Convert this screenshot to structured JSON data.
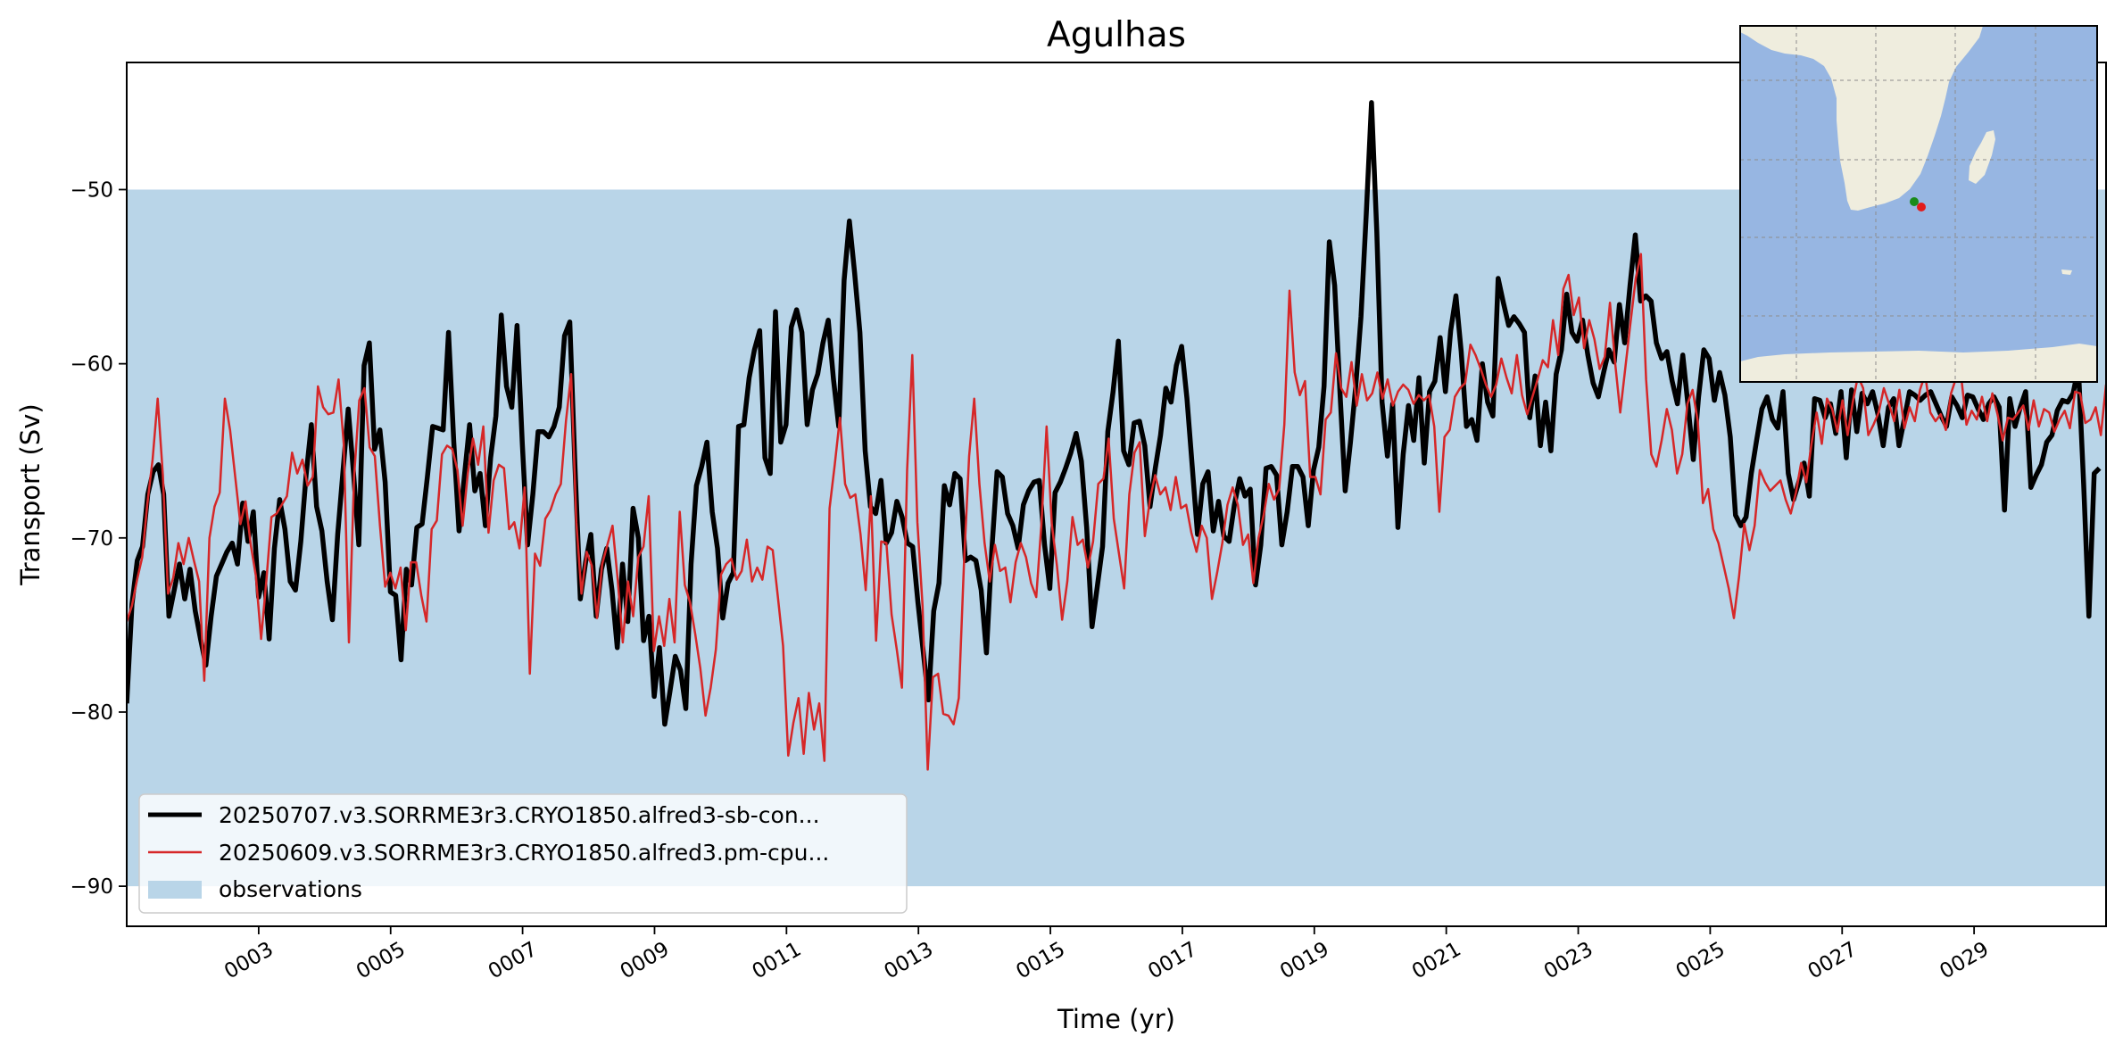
{
  "chart_data": {
    "type": "line",
    "title": "Agulhas",
    "xlabel": "Time (yr)",
    "ylabel": "Transport (Sv)",
    "xlim": [
      1.0,
      31.0
    ],
    "ylim": [
      -92.3,
      -42.7
    ],
    "x_ticks": [
      3,
      5,
      7,
      9,
      11,
      13,
      15,
      17,
      19,
      21,
      23,
      25,
      27,
      29
    ],
    "x_tick_labels": [
      "0003",
      "0005",
      "0007",
      "0009",
      "0011",
      "0013",
      "0015",
      "0017",
      "0019",
      "0021",
      "0023",
      "0025",
      "0027",
      "0029"
    ],
    "y_ticks": [
      -90,
      -80,
      -70,
      -60,
      -50
    ],
    "y_tick_labels": [
      "−90",
      "−80",
      "−70",
      "−60",
      "−50"
    ],
    "observations": {
      "name": "observations",
      "ymin": -90,
      "ymax": -50,
      "color": "#b9d5e8"
    },
    "legend_position": "lower-left",
    "inset_map": {
      "type": "map",
      "region": "Southern Africa",
      "land_color": "#efedde",
      "ocean_color": "#97b6e2",
      "markers": [
        {
          "color": "#1a8a1a",
          "lon": 20.0,
          "lat": -34.8
        },
        {
          "color": "#e21b1b",
          "lon": 20.5,
          "lat": -35.2
        }
      ]
    },
    "series": [
      {
        "name": "20250707.v3.SORRME3r3.CRYO1850.alfred3-sb-con...",
        "color": "#000000",
        "x_start": 1.0,
        "x_end": 30.9,
        "y": [
          -79.5,
          -73.8,
          -71.3,
          -70.5,
          -67.5,
          -66.2,
          -65.8,
          -67.5,
          -74.5,
          -73,
          -71.5,
          -73.5,
          -71.8,
          -74.2,
          -75.8,
          -77.3,
          -74.5,
          -72.2,
          -71.5,
          -70.8,
          -70.3,
          -71.5,
          -68,
          -70.2,
          -68.5,
          -73.4,
          -72,
          -75.8,
          -70.6,
          -67.8,
          -69.5,
          -72.5,
          -73,
          -70.2,
          -66.4,
          -63.5,
          -68.2,
          -69.6,
          -72.5,
          -74.7,
          -69.8,
          -66.2,
          -62.6,
          -66.3,
          -70.4,
          -60.1,
          -58.8,
          -64.9,
          -63.8,
          -66.8,
          -73.1,
          -73.3,
          -77,
          -71.8,
          -72.7,
          -69.4,
          -69.2,
          -66.5,
          -63.6,
          -63.7,
          -63.8,
          -58.2,
          -64.5,
          -69.6,
          -66.5,
          -63.5,
          -67.3,
          -66.3,
          -69.3,
          -65.4,
          -63,
          -57.2,
          -61.3,
          -62.5,
          -57.8,
          -64.6,
          -70.4,
          -67.5,
          -63.9,
          -63.9,
          -64.2,
          -63.6,
          -62.5,
          -58.4,
          -57.6,
          -66,
          -73.5,
          -71.4,
          -69.8,
          -74.5,
          -71.8,
          -70.6,
          -73,
          -76.3,
          -71.5,
          -74.8,
          -68.3,
          -70,
          -75.9,
          -74.5,
          -79.1,
          -76.3,
          -80.7,
          -78.8,
          -76.8,
          -77.6,
          -79.8,
          -71.5,
          -67,
          -65.9,
          -64.5,
          -68.5,
          -70.6,
          -74.6,
          -72.6,
          -72,
          -63.6,
          -63.5,
          -60.8,
          -59.2,
          -58.1,
          -65.4,
          -66.3,
          -57,
          -64.5,
          -63.5,
          -57.9,
          -56.9,
          -58.2,
          -63.5,
          -61.5,
          -60.6,
          -58.8,
          -57.5,
          -60.9,
          -63.6,
          -55.2,
          -51.8,
          -54.8,
          -58.2,
          -65,
          -68.2,
          -68.6,
          -66.7,
          -70.3,
          -69.7,
          -67.9,
          -68.8,
          -70.3,
          -70.5,
          -73.7,
          -76.5,
          -79.3,
          -74.2,
          -72.6,
          -67,
          -68.1,
          -66.3,
          -66.6,
          -71.3,
          -71.1,
          -71.3,
          -73,
          -76.6,
          -70.7,
          -66.2,
          -66.5,
          -68.6,
          -69.3,
          -70.6,
          -68.1,
          -67.3,
          -66.8,
          -66.7,
          -70.4,
          -72.9,
          -67.4,
          -66.8,
          -66,
          -65.1,
          -64,
          -65.6,
          -69.4,
          -75.1,
          -72.8,
          -70.5,
          -63.9,
          -61.6,
          -58.7,
          -65,
          -65.8,
          -63.4,
          -63.3,
          -64.7,
          -68.2,
          -66,
          -64.1,
          -61.4,
          -62.2,
          -60.1,
          -59,
          -62,
          -65.9,
          -69.8,
          -66.9,
          -66.2,
          -69.6,
          -67.9,
          -69.9,
          -70.2,
          -68.1,
          -66.6,
          -67.6,
          -67.2,
          -72.7,
          -70.4,
          -66,
          -65.9,
          -66.4,
          -70.4,
          -68.5,
          -65.9,
          -65.9,
          -66.5,
          -69.3,
          -66.1,
          -64.8,
          -61.3,
          -53,
          -55.5,
          -61.6,
          -67.3,
          -64.5,
          -61.3,
          -57.3,
          -51.4,
          -45,
          -52.4,
          -62.2,
          -65.3,
          -62.3,
          -69.4,
          -65.2,
          -62.4,
          -64.4,
          -60.8,
          -65.7,
          -61.6,
          -61,
          -58.5,
          -61.6,
          -58.1,
          -56.1,
          -59.3,
          -63.6,
          -63.2,
          -64.4,
          -60,
          -62.2,
          -63,
          -55.1,
          -56.5,
          -57.8,
          -57.3,
          -57.7,
          -58.2,
          -63.1,
          -60.7,
          -64.7,
          -62.2,
          -65,
          -60.6,
          -59.2,
          -56,
          -58.2,
          -58.7,
          -57.5,
          -59.5,
          -61.1,
          -61.9,
          -60.5,
          -59.2,
          -59.9,
          -56.6,
          -58.8,
          -55.5,
          -52.6,
          -56.4,
          -56.1,
          -56.4,
          -58.8,
          -59.7,
          -59.3,
          -61,
          -62.3,
          -59.5,
          -62.4,
          -65.5,
          -61.9,
          -59.2,
          -59.7,
          -62.1,
          -60.5,
          -61.8,
          -64.2,
          -68.7,
          -69.3,
          -68.8,
          -66.3,
          -64.4,
          -62.6,
          -61.9,
          -63.2,
          -63.7,
          -61.6,
          -66.3,
          -67.8,
          -66.8,
          -65.7,
          -67.6,
          -62,
          -62.1,
          -63.1,
          -62.3,
          -64,
          -61.6,
          -65.4,
          -61.5,
          -63.9,
          -61.7,
          -62.3,
          -61.6,
          -62.9,
          -64.7,
          -62.5,
          -62,
          -64.7,
          -63.2,
          -61.6,
          -61.8,
          -62.1,
          -61.8,
          -61.6,
          -62.3,
          -63,
          -63.6,
          -61.9,
          -62.4,
          -63.1,
          -61.8,
          -61.9,
          -62.6,
          -63.2,
          -62.3,
          -61.9,
          -62.5,
          -68.4,
          -62,
          -63.6,
          -62.5,
          -61.6,
          -67.1,
          -66.4,
          -65.8,
          -64.5,
          -64.1,
          -62.7,
          -62.1,
          -62.2,
          -61.7,
          -60.2,
          -66.9,
          -74.5,
          -66.3,
          -66
        ]
      },
      {
        "name": "20250609.v3.SORRME3r3.CRYO1850.alfred3.pm-cpu...",
        "color": "#d62728",
        "x_start": 1.0,
        "x_end": 31.0,
        "y": [
          -74.8,
          -73.9,
          -72.4,
          -71.1,
          -68,
          -65.5,
          -62,
          -66.4,
          -73.2,
          -72.3,
          -70.3,
          -71.5,
          -70,
          -71.3,
          -72.5,
          -78.2,
          -70,
          -68.2,
          -67.4,
          -62,
          -63.8,
          -66.5,
          -69.2,
          -67.9,
          -70.4,
          -72.2,
          -75.8,
          -72.5,
          -68.8,
          -68.6,
          -68.1,
          -67.6,
          -65.1,
          -66.3,
          -65.5,
          -67,
          -66.5,
          -61.3,
          -62.5,
          -62.9,
          -62.8,
          -60.9,
          -64.6,
          -76,
          -66.5,
          -62.1,
          -61.4,
          -64.8,
          -65.3,
          -69.3,
          -72.8,
          -72,
          -72.9,
          -71.7,
          -75.3,
          -71.4,
          -71.4,
          -73.3,
          -74.8,
          -69.5,
          -69,
          -65.2,
          -64.7,
          -64.9,
          -66.1,
          -69.3,
          -66.3,
          -64.3,
          -65.8,
          -63.6,
          -69.7,
          -66.7,
          -65.8,
          -66,
          -69.5,
          -69.1,
          -70.6,
          -67.1,
          -77.8,
          -70.9,
          -71.6,
          -68.9,
          -68.4,
          -67.5,
          -66.9,
          -63.3,
          -60.6,
          -69.1,
          -73.2,
          -70.8,
          -71.6,
          -74.6,
          -71.5,
          -70.4,
          -69.3,
          -72.4,
          -76,
          -72.5,
          -74.5,
          -71.1,
          -70.5,
          -67.6,
          -76.5,
          -74.5,
          -76.2,
          -73.5,
          -76,
          -68.5,
          -72.7,
          -73.7,
          -75.5,
          -77.5,
          -80.2,
          -78.6,
          -76.4,
          -72.1,
          -71.5,
          -71.2,
          -72.4,
          -71.9,
          -70.1,
          -72.5,
          -71.7,
          -72.4,
          -70.5,
          -70.7,
          -73.4,
          -76.2,
          -82.5,
          -80.6,
          -79.2,
          -82.4,
          -78.9,
          -81,
          -79.5,
          -82.8,
          -68.3,
          -65.8,
          -63.1,
          -66.9,
          -67.7,
          -67.5,
          -69.8,
          -73,
          -67.6,
          -75.9,
          -70.2,
          -70.3,
          -74.4,
          -76.4,
          -78.6,
          -66.1,
          -59.5,
          -69.1,
          -73.9,
          -83.3,
          -78,
          -77.8,
          -80.1,
          -80.2,
          -80.7,
          -79.2,
          -71.5,
          -65.3,
          -62,
          -66.9,
          -70.3,
          -72.5,
          -70.4,
          -71.9,
          -71.7,
          -73.7,
          -71.4,
          -70.3,
          -71.1,
          -72.6,
          -73.4,
          -69.2,
          -63.6,
          -69.2,
          -71.6,
          -74.7,
          -72.5,
          -68.8,
          -70.4,
          -70.1,
          -71.7,
          -70.2,
          -66.9,
          -66.6,
          -64.3,
          -68.9,
          -70.9,
          -72.9,
          -67.5,
          -65.1,
          -64.5,
          -69.9,
          -67.8,
          -66.4,
          -67.5,
          -67.1,
          -68.4,
          -66.5,
          -68.3,
          -68.1,
          -69.7,
          -70.8,
          -69.3,
          -70,
          -73.5,
          -72,
          -70.3,
          -68.1,
          -67.1,
          -68.1,
          -70.4,
          -69.8,
          -72.6,
          -70,
          -68.7,
          -66.9,
          -67.8,
          -67.2,
          -63.5,
          -55.8,
          -60.5,
          -61.8,
          -61,
          -66.5,
          -66.5,
          -67.5,
          -63.2,
          -62.8,
          -59.4,
          -61.4,
          -61.9,
          -59.9,
          -62.4,
          -60.6,
          -62.1,
          -61.7,
          -60.5,
          -62,
          -60.9,
          -62.4,
          -61.6,
          -61.2,
          -61.5,
          -62.3,
          -61.8,
          -62.1,
          -61.8,
          -63.6,
          -68.5,
          -64.2,
          -63.8,
          -61.9,
          -61.4,
          -61.1,
          -58.9,
          -59.5,
          -60.3,
          -61.2,
          -61.9,
          -61.2,
          -59.7,
          -60.8,
          -61.7,
          -59.5,
          -61.8,
          -62.9,
          -61.9,
          -60.9,
          -59.8,
          -60.2,
          -57.5,
          -59.5,
          -55.7,
          -54.9,
          -57.2,
          -56.2,
          -59.1,
          -57.5,
          -58.6,
          -60.3,
          -59.6,
          -56.5,
          -59.9,
          -62.8,
          -60.2,
          -57.6,
          -55.1,
          -53.7,
          -60.9,
          -65.2,
          -65.9,
          -64.4,
          -62.6,
          -63.8,
          -66.3,
          -65.2,
          -62.3,
          -61.5,
          -63.3,
          -68,
          -67.2,
          -69.5,
          -70.3,
          -71.6,
          -72.9,
          -74.6,
          -72.2,
          -69.2,
          -70.7,
          -69.3,
          -66.1,
          -66.8,
          -67.3,
          -67,
          -66.7,
          -67.8,
          -68.6,
          -67.4,
          -65.7,
          -66.8,
          -64.6,
          -62.8,
          -64.6,
          -62,
          -62.6,
          -63.9,
          -62.1,
          -64.1,
          -62.2,
          -60.7,
          -61.4,
          -64.1,
          -63.5,
          -62.8,
          -61.4,
          -62.3,
          -63.3,
          -61.5,
          -63.7,
          -62.5,
          -63.3,
          -61.5,
          -60.6,
          -62.8,
          -63.3,
          -62.9,
          -63.8,
          -61.7,
          -60.8,
          -60.8,
          -63.5,
          -62.7,
          -63.2,
          -61.9,
          -63.3,
          -61.7,
          -62.9,
          -64.4,
          -63.1,
          -63.2,
          -62.8,
          -62.4,
          -63.8,
          -62.1,
          -63.6,
          -62.6,
          -62.8,
          -63.9,
          -63.2,
          -62.7,
          -63.7,
          -61.6,
          -61.7,
          -63.4,
          -63.2,
          -62.5,
          -64.1,
          -61.2
        ]
      }
    ]
  }
}
